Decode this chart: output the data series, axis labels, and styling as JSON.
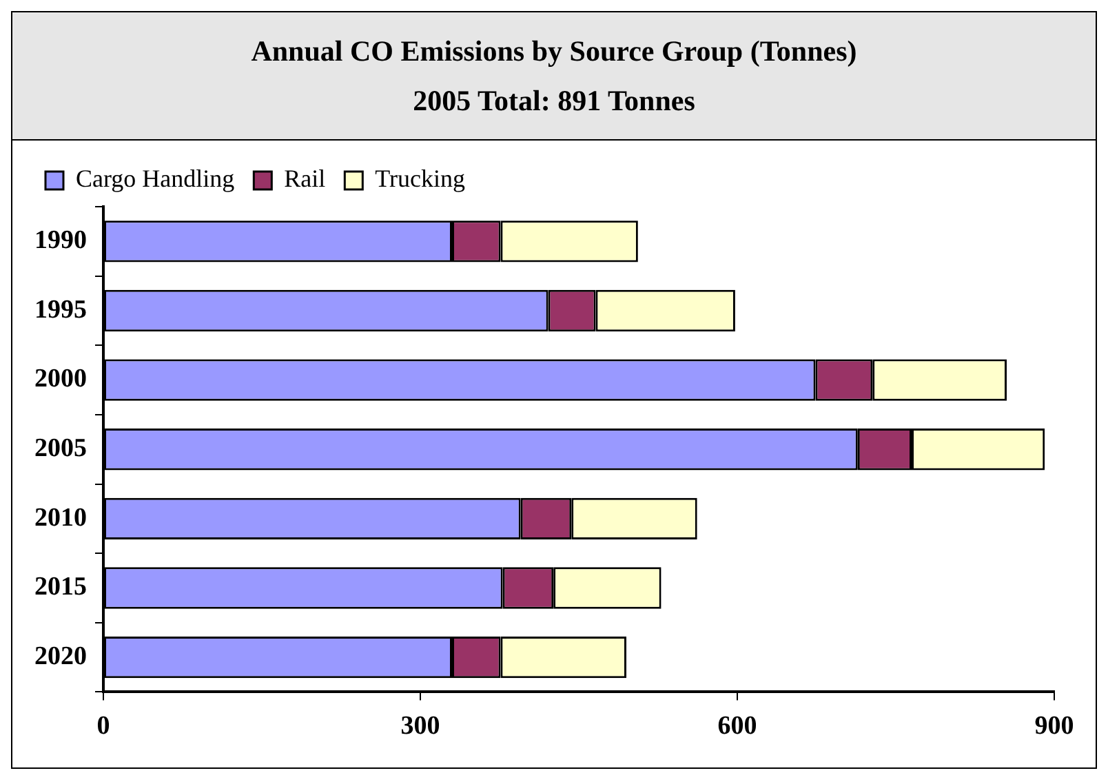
{
  "chart_data": {
    "type": "bar",
    "orientation": "horizontal",
    "stacked": true,
    "title": "Annual CO Emissions by Source Group (Tonnes)",
    "subtitle": "2005 Total: 891 Tonnes",
    "categories": [
      "1990",
      "1995",
      "2000",
      "2005",
      "2010",
      "2015",
      "2020"
    ],
    "series": [
      {
        "name": "Cargo Handling",
        "color": "#9999ff",
        "values": [
          330,
          421,
          674,
          714,
          395,
          378,
          330
        ]
      },
      {
        "name": "Rail",
        "color": "#993366",
        "values": [
          46,
          45,
          54,
          51,
          48,
          48,
          46
        ]
      },
      {
        "name": "Trucking",
        "color": "#ffffcc",
        "values": [
          130,
          132,
          127,
          126,
          119,
          102,
          119
        ]
      }
    ],
    "xlim": [
      0,
      900
    ],
    "xticks": [
      0,
      300,
      600,
      900
    ],
    "grid": false,
    "legend": "top left"
  }
}
